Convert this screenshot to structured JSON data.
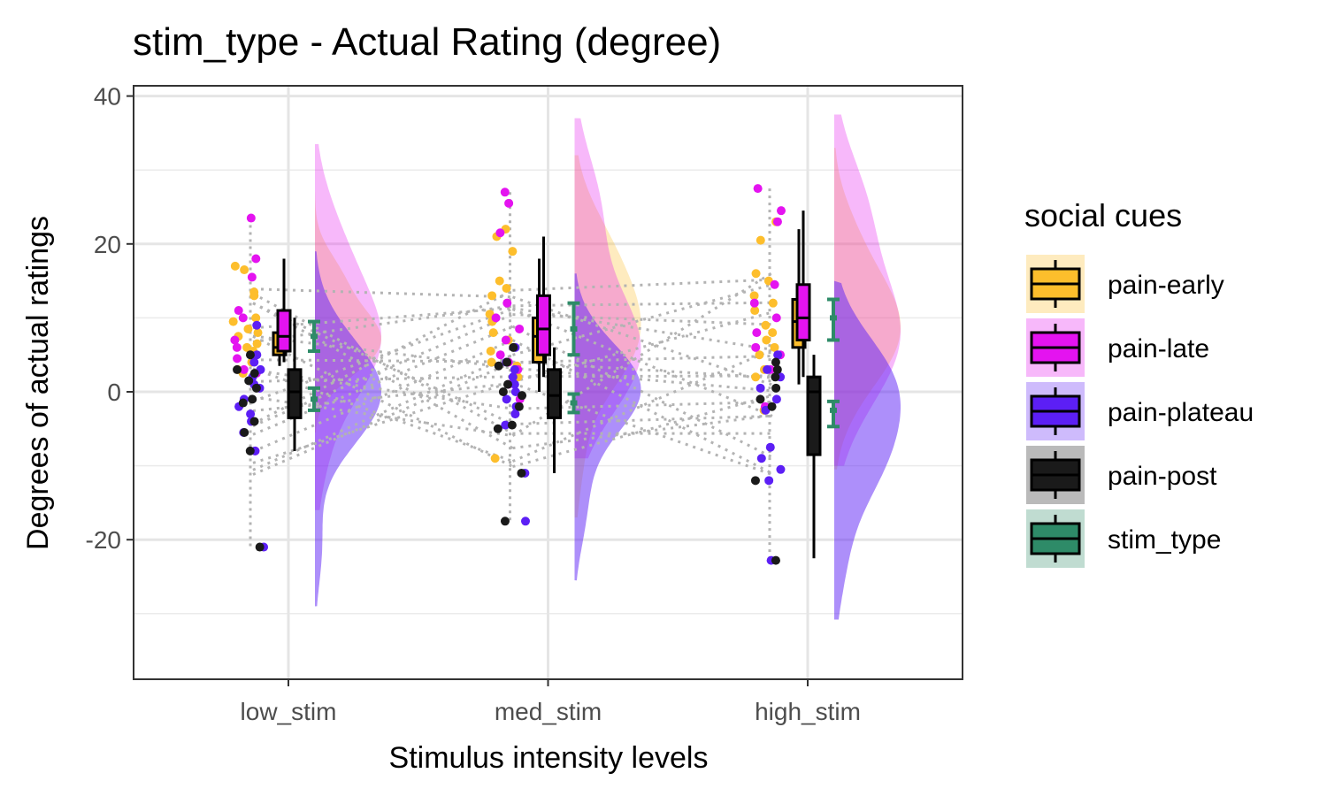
{
  "chart_data": {
    "type": "raincloud",
    "title": "stim_type  - Actual Rating (degree)",
    "xlabel": "Stimulus intensity levels",
    "ylabel": "Degrees of actual ratings",
    "categories": [
      "low_stim",
      "med_stim",
      "high_stim"
    ],
    "ylim": [
      -39,
      40
    ],
    "yticks": [
      -20,
      0,
      20,
      40
    ],
    "grid": true,
    "legend": {
      "title": "social cues",
      "position": "right",
      "entries": [
        {
          "label": "pain-early",
          "color": "#FDBE2C"
        },
        {
          "label": "pain-late",
          "color": "#E413F0"
        },
        {
          "label": "pain-plateau",
          "color": "#5C1FF5"
        },
        {
          "label": "pain-post",
          "color": "#1A1A1A"
        },
        {
          "label": "stim_type",
          "color": "#2E8B68"
        }
      ]
    },
    "series": [
      {
        "name": "pain-early",
        "color": "#FDBE2C",
        "box": [
          {
            "category": "low_stim",
            "min": 3.5,
            "q1": 5,
            "median": 6,
            "q3": 8,
            "max": 9
          },
          {
            "category": "med_stim",
            "min": 0,
            "q1": 4,
            "median": 7.5,
            "q3": 10,
            "max": 18
          },
          {
            "category": "high_stim",
            "min": 1,
            "q1": 6,
            "median": 9.5,
            "q3": 12.5,
            "max": 22
          }
        ],
        "points": [
          {
            "category": "low_stim",
            "values": [
              17,
              16.5,
              13.5,
              13,
              10,
              9.5,
              8.5,
              8,
              7.5,
              6.5,
              6,
              5.5,
              4,
              3,
              2.5
            ]
          },
          {
            "category": "med_stim",
            "values": [
              22,
              21,
              19,
              15,
              14,
              13,
              10.5,
              9.5,
              8,
              7,
              5.5,
              4,
              3.5,
              2,
              -9
            ]
          },
          {
            "category": "high_stim",
            "values": [
              23,
              20.5,
              16,
              15,
              13,
              12,
              11,
              9,
              8,
              7,
              6,
              5,
              3,
              2,
              -2.5
            ]
          }
        ]
      },
      {
        "name": "pain-late",
        "color": "#E413F0",
        "box": [
          {
            "category": "low_stim",
            "min": 4,
            "q1": 5.5,
            "median": 7.5,
            "q3": 11,
            "max": 18
          },
          {
            "category": "med_stim",
            "min": 2,
            "q1": 5,
            "median": 8.5,
            "q3": 13,
            "max": 21
          },
          {
            "category": "high_stim",
            "min": 2,
            "q1": 7,
            "median": 10,
            "q3": 14.5,
            "max": 24.5
          }
        ],
        "points": [
          {
            "category": "low_stim",
            "values": [
              23.5,
              18,
              15.5,
              11,
              10,
              7,
              6,
              4.5,
              3,
              2.5,
              -8
            ]
          },
          {
            "category": "med_stim",
            "values": [
              27,
              25.5,
              21.5,
              12,
              10,
              8.5,
              7,
              5,
              4,
              3,
              1,
              -1
            ]
          },
          {
            "category": "high_stim",
            "values": [
              27.5,
              24.5,
              23,
              14.5,
              12,
              10,
              8,
              6,
              5,
              3,
              -2
            ]
          }
        ]
      },
      {
        "name": "pain-plateau",
        "color": "#5C1FF5",
        "box": [
          {
            "category": "low_stim",
            "min": -8,
            "q1": -3.5,
            "median": 0,
            "q3": 3,
            "max": 10
          },
          {
            "category": "med_stim",
            "min": -11,
            "q1": -3.5,
            "median": 0,
            "q3": 3,
            "max": 6
          },
          {
            "category": "high_stim",
            "min": -22.5,
            "q1": -8.5,
            "median": -1,
            "q3": 2,
            "max": 5
          }
        ],
        "points": [
          {
            "category": "low_stim",
            "values": [
              9,
              5,
              4,
              3,
              2,
              1,
              0.5,
              -1,
              -2,
              -3,
              -4,
              -5.5,
              -8,
              -21
            ]
          },
          {
            "category": "med_stim",
            "values": [
              6,
              4,
              3,
              2,
              1,
              0,
              -1,
              -2,
              -3,
              -4.5,
              -11,
              -17.5
            ]
          },
          {
            "category": "high_stim",
            "values": [
              5,
              3,
              2,
              0.5,
              -1,
              -2.5,
              -7.5,
              -9,
              -10.5,
              -12,
              -22.8
            ]
          }
        ]
      },
      {
        "name": "pain-post",
        "color": "#1A1A1A",
        "box": [
          {
            "category": "low_stim",
            "min": -8,
            "q1": -3.5,
            "median": 0,
            "q3": 3,
            "max": 10
          },
          {
            "category": "med_stim",
            "min": -11,
            "q1": -3.5,
            "median": -0.5,
            "q3": 3,
            "max": 6
          },
          {
            "category": "high_stim",
            "min": -22.5,
            "q1": -8.5,
            "median": 0,
            "q3": 2,
            "max": 5
          }
        ],
        "points": [
          {
            "category": "low_stim",
            "values": [
              5,
              3,
              2.5,
              1.5,
              0.5,
              -1,
              -1.5,
              -4,
              -5.5,
              -8,
              -21
            ]
          },
          {
            "category": "med_stim",
            "values": [
              6,
              4,
              3.5,
              1,
              0,
              -0.5,
              -2,
              -4.5,
              -5,
              -11,
              -17.5
            ]
          },
          {
            "category": "high_stim",
            "values": [
              4,
              3,
              2,
              0.5,
              -1,
              -2,
              -12,
              -22.8
            ]
          }
        ]
      },
      {
        "name": "stim_type",
        "color": "#2E8B68",
        "errorbars": [
          {
            "category": "low_stim",
            "mean": 7.5,
            "lower": 5.5,
            "upper": 9.5
          },
          {
            "category": "low_stim",
            "mean": -1,
            "lower": -2.5,
            "upper": 0.5
          },
          {
            "category": "med_stim",
            "mean": 8.5,
            "lower": 5,
            "upper": 12
          },
          {
            "category": "med_stim",
            "mean": -1.5,
            "lower": -2.8,
            "upper": -0.3
          },
          {
            "category": "high_stim",
            "mean": 10,
            "lower": 7,
            "upper": 12.5
          },
          {
            "category": "high_stim",
            "mean": -2.5,
            "lower": -4.7,
            "upper": -1.3
          }
        ]
      }
    ]
  }
}
